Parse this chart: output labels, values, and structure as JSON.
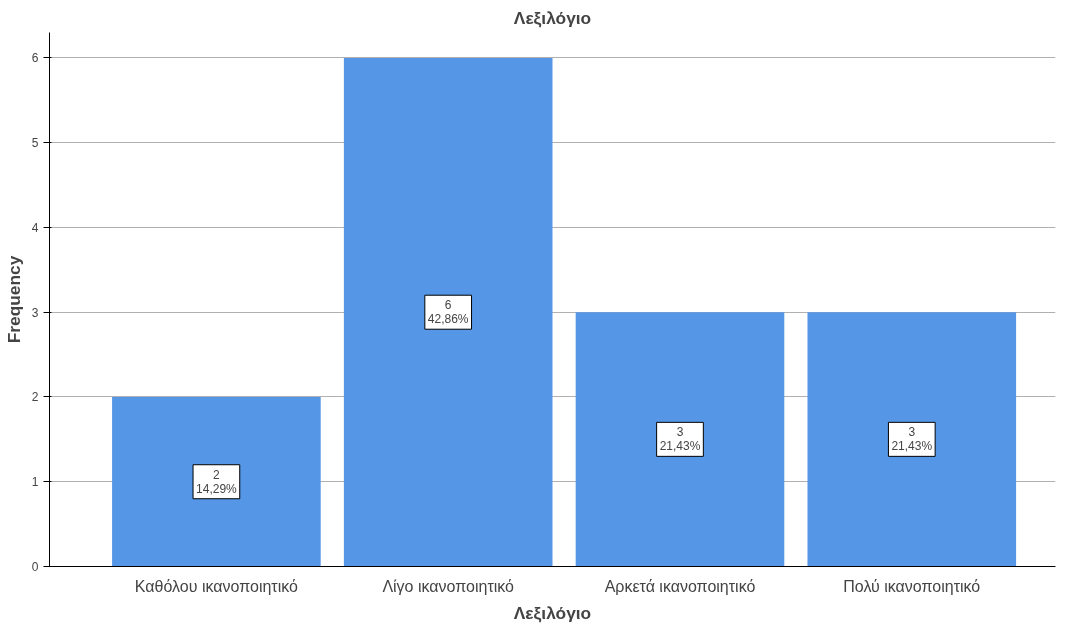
{
  "chart_data": {
    "type": "bar",
    "title": "Λεξιλόγιο",
    "xlabel": "Λεξιλόγιο",
    "ylabel": "Frequency",
    "categories": [
      "Καθόλου ικανοποιητικό",
      "Λίγο ικανοποιητικό",
      "Αρκετά ικανοποιητικό",
      "Πολύ ικανοποιητικό"
    ],
    "values": [
      2,
      6,
      3,
      3
    ],
    "value_labels": [
      "2\n14,29%",
      "6\n42,86%",
      "3\n21,43%",
      "3\n21,43%"
    ],
    "color": "#5596e6",
    "ylim": [
      0,
      6.3
    ],
    "yticks": [
      0,
      1,
      2,
      3,
      4,
      5,
      6
    ],
    "grid": "y"
  }
}
